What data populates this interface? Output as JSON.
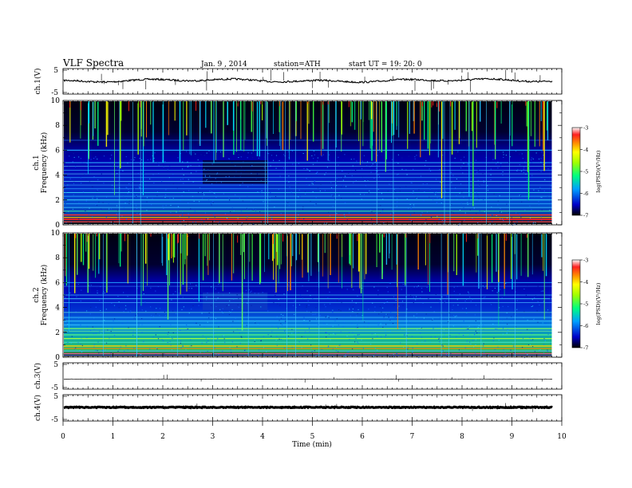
{
  "header": {
    "title": "VLF  Spectra",
    "date": "Jan. 9 , 2014",
    "station": "station=ATH",
    "start": "start  UT  =   19: 20: 0"
  },
  "chart_data": [
    {
      "type": "line",
      "name": "ch1-waveform",
      "ylabel": "ch.1(V)",
      "ylim": [
        -5,
        5
      ],
      "yticks": [
        "5",
        "-5"
      ],
      "xlim": [
        0,
        10
      ],
      "baseline": 0.3
    },
    {
      "type": "heatmap",
      "name": "ch1-spectrogram",
      "ylabel_lines": [
        "ch.1",
        "Frequency  (kHz)"
      ],
      "xlim": [
        0,
        10
      ],
      "ylim": [
        0,
        10
      ],
      "yticks": [
        "0",
        "2",
        "4",
        "6",
        "8",
        "10"
      ],
      "data_end_min": 9.8,
      "colorbar": {
        "label": "log(PSD)(V²/Hz)",
        "range": [
          -7,
          -3
        ],
        "ticks": [
          "-3",
          "-4",
          "-5",
          "-6",
          "-7"
        ]
      }
    },
    {
      "type": "heatmap",
      "name": "ch2-spectrogram",
      "ylabel_lines": [
        "ch.2",
        "Frequency  (kHz)"
      ],
      "xlim": [
        0,
        10
      ],
      "ylim": [
        0,
        10
      ],
      "yticks": [
        "0",
        "2",
        "4",
        "6",
        "8",
        "10"
      ],
      "data_end_min": 9.8,
      "colorbar": {
        "label": "log(PSD)(V²/Hz)",
        "range": [
          -7,
          -3
        ],
        "ticks": [
          "-3",
          "-4",
          "-5",
          "-6",
          "-7"
        ]
      }
    },
    {
      "type": "line",
      "name": "ch3-waveform",
      "ylabel": "ch.3(V)",
      "ylim": [
        -5,
        5
      ],
      "yticks": [
        "5",
        "-5"
      ],
      "xlim": [
        0,
        10
      ],
      "baseline": -1.2
    },
    {
      "type": "line",
      "name": "ch4-waveform",
      "ylabel": "ch.4(V)",
      "ylim": [
        -5,
        5
      ],
      "yticks": [
        "5",
        "-5"
      ],
      "xlim": [
        0,
        10
      ],
      "baseline": 0.2
    }
  ],
  "xaxis": {
    "label": "Time  (min)",
    "ticks": [
      "0",
      "1",
      "2",
      "3",
      "4",
      "5",
      "6",
      "7",
      "8",
      "9",
      "10"
    ]
  }
}
